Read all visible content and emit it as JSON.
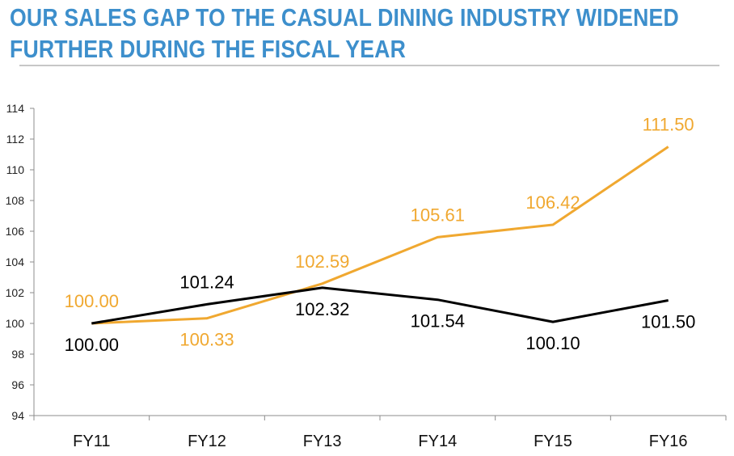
{
  "chart_data": {
    "type": "line",
    "title_lines": [
      "OUR SALES GAP TO THE CASUAL DINING INDUSTRY WIDENED",
      "FURTHER DURING THE FISCAL YEAR"
    ],
    "categories": [
      "FY11",
      "FY12",
      "FY13",
      "FY14",
      "FY15",
      "FY16"
    ],
    "ylim": [
      94,
      114
    ],
    "yticks": [
      94,
      96,
      98,
      100,
      102,
      104,
      106,
      108,
      110,
      112,
      114
    ],
    "xlabel": "",
    "ylabel": "",
    "grid": false,
    "legend": "none",
    "series": [
      {
        "name": "orange-series",
        "color": "#f0a830",
        "values": [
          100.0,
          100.33,
          102.59,
          105.61,
          106.42,
          111.5
        ],
        "labels": [
          "100.00",
          "100.33",
          "102.59",
          "105.61",
          "106.42",
          "111.50"
        ],
        "label_pos": [
          "above",
          "below",
          "above",
          "above",
          "above",
          "above"
        ]
      },
      {
        "name": "black-series",
        "color": "#000000",
        "values": [
          100.0,
          101.24,
          102.32,
          101.54,
          100.1,
          101.5
        ],
        "labels": [
          "100.00",
          "101.24",
          "102.32",
          "101.54",
          "100.10",
          "101.50"
        ],
        "label_pos": [
          "below",
          "above",
          "below",
          "below",
          "below",
          "below"
        ]
      }
    ]
  }
}
